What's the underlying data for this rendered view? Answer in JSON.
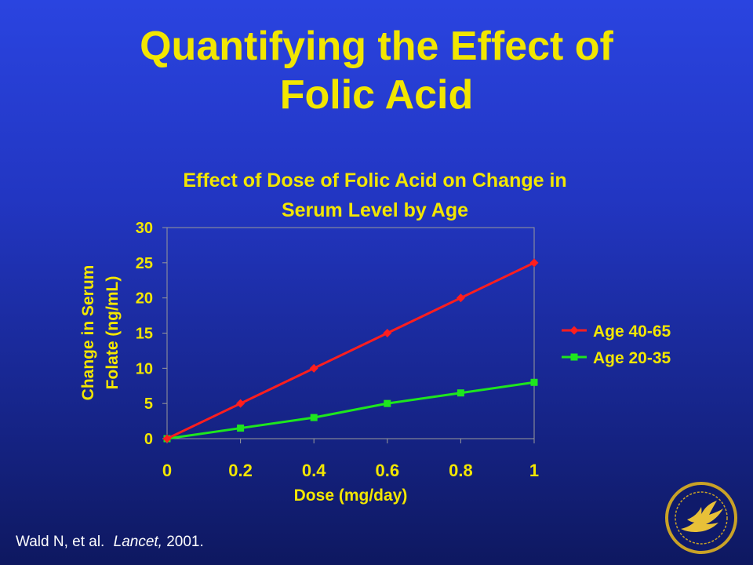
{
  "slide": {
    "title_line1": "Quantifying the Effect of",
    "title_line2": "Folic Acid"
  },
  "citation": {
    "authors": "Wald N, et al.",
    "journal": "Lancet,",
    "year": "2001."
  },
  "colors": {
    "title": "#f2e600",
    "axis_text": "#f2e600",
    "legend_text": "#f2e600",
    "series_age_40_65": "#ff1e1e",
    "series_age_20_35": "#1ee61e",
    "plot_border": "#9a9a9a"
  },
  "seal_icon": "hhs-seal-icon",
  "chart_data": {
    "type": "line",
    "title_lines": [
      "Effect of Dose of Folic Acid on Change in",
      "Serum Level by Age"
    ],
    "xlabel": "Dose (mg/day)",
    "ylabel_lines": [
      "Change in Serum",
      "Folate (ng/mL)"
    ],
    "x": [
      0,
      0.2,
      0.4,
      0.6,
      0.8,
      1
    ],
    "x_tick_labels": [
      "0",
      "0.2",
      "0.4",
      "0.6",
      "0.8",
      "1"
    ],
    "y_tick_labels": [
      "0",
      "5",
      "10",
      "15",
      "20",
      "25",
      "30"
    ],
    "xlim": [
      0,
      1
    ],
    "ylim": [
      0,
      30
    ],
    "grid": false,
    "legend_position": "right",
    "series": [
      {
        "name": "Age 40-65",
        "marker": "diamond",
        "color": "#ff1e1e",
        "values": [
          0,
          5,
          10,
          15,
          20,
          25
        ]
      },
      {
        "name": "Age 20-35",
        "marker": "square",
        "color": "#1ee61e",
        "values": [
          0,
          1.5,
          3,
          5,
          6.5,
          8
        ]
      }
    ]
  }
}
